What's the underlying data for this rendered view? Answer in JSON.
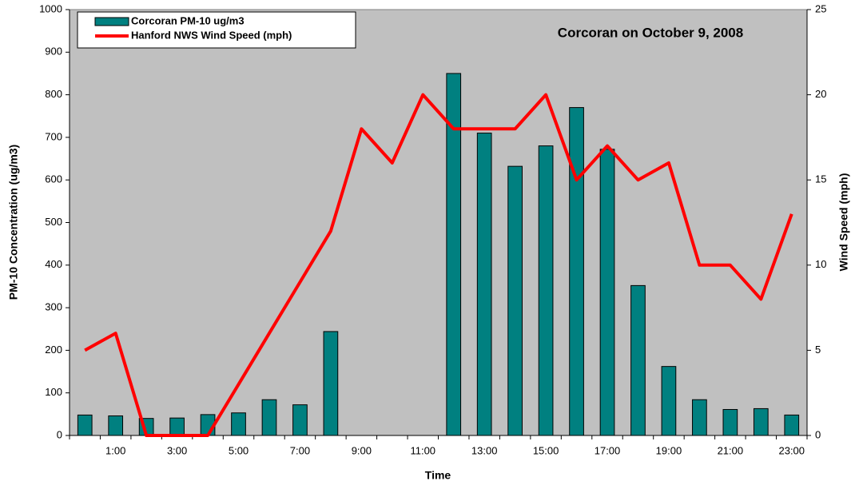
{
  "chart_data": {
    "type": "bar_line",
    "title": "Corcoran on October 9, 2008",
    "x_label": "Time",
    "y_label": "PM-10 Concentration (ug/m3)",
    "y2_label": "Wind Speed (mph)",
    "categories": [
      null,
      "1:00",
      null,
      "3:00",
      null,
      "5:00",
      null,
      "7:00",
      null,
      "9:00",
      null,
      "11:00",
      null,
      "13:00",
      null,
      "15:00",
      null,
      "17:00",
      null,
      "19:00",
      null,
      "21:00",
      null,
      "23:00"
    ],
    "series": [
      {
        "name": "Corcoran PM-10 ug/m3",
        "type": "bar",
        "color": "#008080",
        "values": [
          48,
          46,
          40,
          41,
          49,
          53,
          84,
          72,
          244,
          null,
          null,
          null,
          850,
          710,
          632,
          680,
          770,
          672,
          352,
          162,
          84,
          61,
          63,
          48
        ]
      },
      {
        "name": "Hanford NWS Wind Speed (mph)",
        "type": "line",
        "color": "#ff0000",
        "axis": "y2",
        "values": [
          5,
          6,
          0,
          0,
          0,
          3,
          6,
          9,
          12,
          18,
          16,
          20,
          18,
          18,
          18,
          20,
          15,
          17,
          15,
          16,
          10,
          10,
          8,
          13
        ]
      }
    ],
    "ylim": [
      0,
      1000
    ],
    "yticks": [
      0,
      100,
      200,
      300,
      400,
      500,
      600,
      700,
      800,
      900,
      1000
    ],
    "y2lim": [
      0,
      25
    ],
    "y2ticks": [
      0,
      5,
      10,
      15,
      20,
      25
    ],
    "grid": false,
    "legend": "upper left"
  }
}
